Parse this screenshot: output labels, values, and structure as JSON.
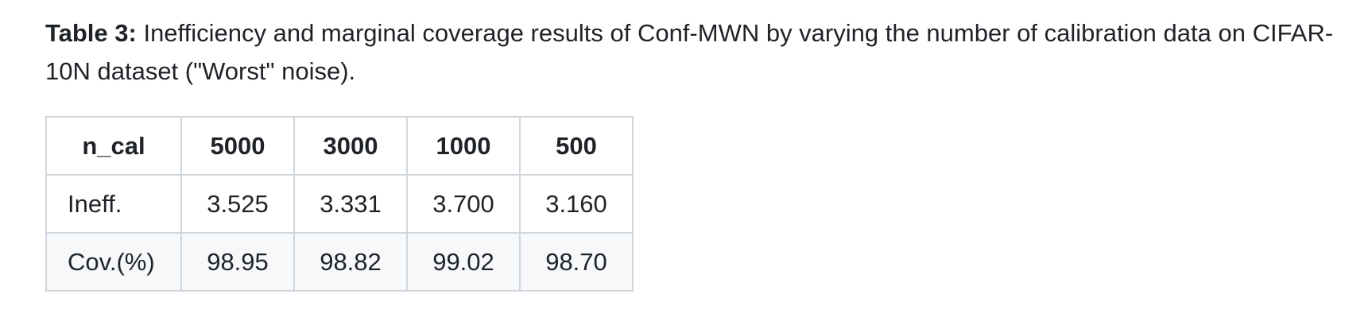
{
  "caption": {
    "label": "Table 3:",
    "text": " Inefficiency and marginal coverage results of Conf-MWN by varying the number of calibration data on CIFAR-10N dataset (\"Worst\" noise)."
  },
  "table": {
    "headers": [
      "n_cal",
      "5000",
      "3000",
      "1000",
      "500"
    ],
    "rows": [
      [
        "Ineff.",
        "3.525",
        "3.331",
        "3.700",
        "3.160"
      ],
      [
        "Cov.(%)",
        "98.95",
        "98.82",
        "99.02",
        "98.70"
      ]
    ]
  }
}
